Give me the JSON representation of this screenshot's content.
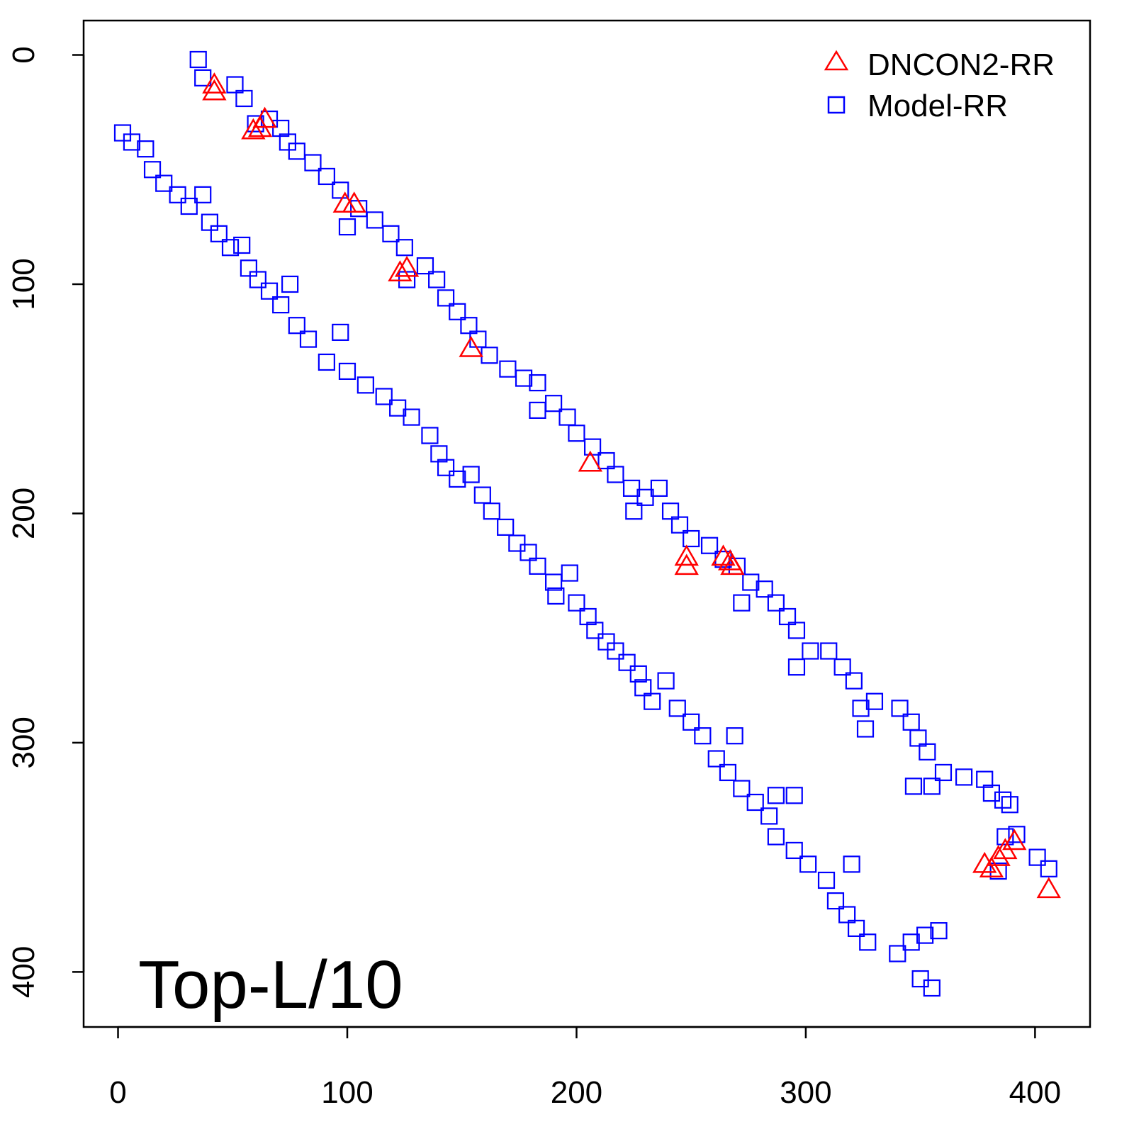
{
  "chart_data": {
    "type": "scatter",
    "title": "",
    "annotation": "Top-L/10",
    "xlabel": "",
    "ylabel": "",
    "xlim": [
      -15,
      424
    ],
    "ylim": [
      424,
      -15
    ],
    "y_reversed": true,
    "xticks": [
      0,
      100,
      200,
      300,
      400
    ],
    "yticks": [
      0,
      100,
      200,
      300,
      400
    ],
    "xtick_labels": [
      "0",
      "100",
      "200",
      "300",
      "400"
    ],
    "ytick_labels": [
      "0",
      "100",
      "200",
      "300",
      "400"
    ],
    "grid": false,
    "legend_position": "top-right",
    "colors": {
      "dncon2": "#ff0000",
      "model": "#0000ff"
    },
    "series": [
      {
        "name": "DNCON2-RR",
        "marker": "triangle",
        "color": "#ff0000",
        "points": [
          [
            42,
            13
          ],
          [
            42,
            16
          ],
          [
            59,
            33
          ],
          [
            64,
            28
          ],
          [
            62,
            32
          ],
          [
            99,
            65
          ],
          [
            103,
            65
          ],
          [
            123,
            95
          ],
          [
            126,
            93
          ],
          [
            154,
            128
          ],
          [
            206,
            178
          ],
          [
            248,
            219
          ],
          [
            248,
            223
          ],
          [
            264,
            219
          ],
          [
            267,
            221
          ],
          [
            268,
            223
          ],
          [
            378,
            353
          ],
          [
            381,
            355
          ],
          [
            384,
            350
          ],
          [
            387,
            347
          ],
          [
            391,
            343
          ],
          [
            406,
            364
          ]
        ]
      },
      {
        "name": "Model-RR",
        "marker": "square",
        "color": "#0000ff",
        "points": [
          [
            35,
            2
          ],
          [
            37,
            10
          ],
          [
            51,
            13
          ],
          [
            55,
            19
          ],
          [
            60,
            30
          ],
          [
            66,
            28
          ],
          [
            71,
            32
          ],
          [
            74,
            38
          ],
          [
            78,
            42
          ],
          [
            85,
            47
          ],
          [
            91,
            53
          ],
          [
            97,
            59
          ],
          [
            100,
            75
          ],
          [
            105,
            67
          ],
          [
            112,
            72
          ],
          [
            119,
            78
          ],
          [
            125,
            84
          ],
          [
            126,
            98
          ],
          [
            134,
            92
          ],
          [
            139,
            98
          ],
          [
            143,
            106
          ],
          [
            148,
            112
          ],
          [
            153,
            118
          ],
          [
            157,
            124
          ],
          [
            162,
            131
          ],
          [
            170,
            137
          ],
          [
            177,
            141
          ],
          [
            183,
            143
          ],
          [
            183,
            155
          ],
          [
            190,
            152
          ],
          [
            196,
            158
          ],
          [
            200,
            165
          ],
          [
            207,
            171
          ],
          [
            213,
            177
          ],
          [
            217,
            183
          ],
          [
            224,
            189
          ],
          [
            225,
            199
          ],
          [
            230,
            193
          ],
          [
            236,
            189
          ],
          [
            241,
            199
          ],
          [
            245,
            205
          ],
          [
            250,
            211
          ],
          [
            258,
            214
          ],
          [
            264,
            220
          ],
          [
            270,
            223
          ],
          [
            272,
            239
          ],
          [
            276,
            230
          ],
          [
            282,
            233
          ],
          [
            287,
            239
          ],
          [
            292,
            245
          ],
          [
            296,
            251
          ],
          [
            296,
            267
          ],
          [
            302,
            260
          ],
          [
            310,
            260
          ],
          [
            316,
            267
          ],
          [
            321,
            273
          ],
          [
            324,
            285
          ],
          [
            326,
            294
          ],
          [
            330,
            282
          ],
          [
            341,
            285
          ],
          [
            346,
            291
          ],
          [
            349,
            298
          ],
          [
            353,
            304
          ],
          [
            347,
            319
          ],
          [
            355,
            319
          ],
          [
            360,
            313
          ],
          [
            369,
            315
          ],
          [
            378,
            316
          ],
          [
            381,
            322
          ],
          [
            386,
            325
          ],
          [
            389,
            327
          ],
          [
            387,
            341
          ],
          [
            392,
            340
          ],
          [
            384,
            356
          ],
          [
            401,
            350
          ],
          [
            406,
            355
          ],
          [
            2,
            34
          ],
          [
            6,
            38
          ],
          [
            12,
            41
          ],
          [
            15,
            50
          ],
          [
            20,
            56
          ],
          [
            26,
            61
          ],
          [
            31,
            66
          ],
          [
            37,
            61
          ],
          [
            40,
            73
          ],
          [
            44,
            78
          ],
          [
            49,
            84
          ],
          [
            54,
            83
          ],
          [
            57,
            93
          ],
          [
            61,
            98
          ],
          [
            66,
            103
          ],
          [
            71,
            109
          ],
          [
            75,
            100
          ],
          [
            78,
            118
          ],
          [
            83,
            124
          ],
          [
            91,
            134
          ],
          [
            97,
            121
          ],
          [
            100,
            138
          ],
          [
            108,
            144
          ],
          [
            116,
            149
          ],
          [
            122,
            154
          ],
          [
            128,
            158
          ],
          [
            136,
            166
          ],
          [
            140,
            174
          ],
          [
            143,
            180
          ],
          [
            148,
            185
          ],
          [
            154,
            183
          ],
          [
            159,
            192
          ],
          [
            163,
            199
          ],
          [
            169,
            206
          ],
          [
            174,
            213
          ],
          [
            179,
            217
          ],
          [
            183,
            223
          ],
          [
            190,
            230
          ],
          [
            191,
            236
          ],
          [
            197,
            226
          ],
          [
            200,
            239
          ],
          [
            205,
            245
          ],
          [
            208,
            251
          ],
          [
            213,
            256
          ],
          [
            217,
            260
          ],
          [
            222,
            265
          ],
          [
            227,
            270
          ],
          [
            229,
            276
          ],
          [
            233,
            282
          ],
          [
            239,
            273
          ],
          [
            244,
            285
          ],
          [
            250,
            291
          ],
          [
            255,
            297
          ],
          [
            261,
            307
          ],
          [
            266,
            313
          ],
          [
            269,
            297
          ],
          [
            272,
            320
          ],
          [
            278,
            326
          ],
          [
            284,
            332
          ],
          [
            287,
            323
          ],
          [
            295,
            323
          ],
          [
            287,
            341
          ],
          [
            295,
            347
          ],
          [
            301,
            353
          ],
          [
            309,
            360
          ],
          [
            313,
            369
          ],
          [
            318,
            375
          ],
          [
            320,
            353
          ],
          [
            322,
            381
          ],
          [
            327,
            387
          ],
          [
            340,
            392
          ],
          [
            346,
            387
          ],
          [
            352,
            384
          ],
          [
            358,
            382
          ],
          [
            350,
            403
          ],
          [
            355,
            407
          ]
        ]
      }
    ]
  }
}
